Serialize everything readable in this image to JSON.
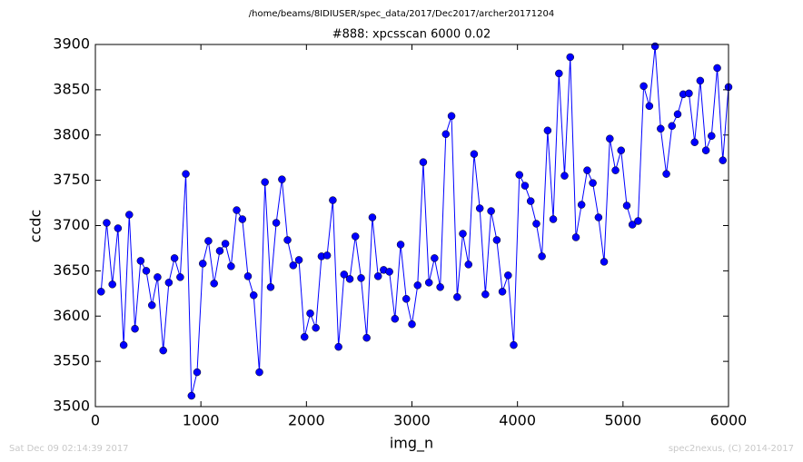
{
  "chart_data": {
    "type": "line",
    "suptitle": "/home/beams/8IDIUSER/spec_data/2017/Dec2017/archer20171204",
    "title": "#888: xpcsscan 6000 0.02",
    "x_label": "img_n",
    "y_label": "ccdc",
    "footer_left": "Sat Dec 09 02:14:39 2017",
    "footer_right": "spec2nexus, (C) 2014-2017",
    "color": "#0000ff",
    "x": [
      54,
      107,
      161,
      214,
      268,
      321,
      375,
      429,
      482,
      536,
      589,
      643,
      696,
      750,
      804,
      857,
      911,
      964,
      1018,
      1071,
      1125,
      1179,
      1232,
      1286,
      1339,
      1393,
      1446,
      1500,
      1554,
      1607,
      1661,
      1714,
      1768,
      1821,
      1875,
      1929,
      1982,
      2036,
      2089,
      2143,
      2196,
      2250,
      2304,
      2357,
      2411,
      2464,
      2518,
      2571,
      2625,
      2679,
      2732,
      2786,
      2839,
      2893,
      2946,
      3000,
      3054,
      3107,
      3161,
      3214,
      3268,
      3321,
      3375,
      3429,
      3482,
      3536,
      3589,
      3643,
      3696,
      3750,
      3804,
      3857,
      3911,
      3964,
      4018,
      4071,
      4125,
      4179,
      4232,
      4286,
      4339,
      4393,
      4446,
      4500,
      4554,
      4607,
      4661,
      4714,
      4768,
      4821,
      4875,
      4929,
      4982,
      5036,
      5089,
      5143,
      5196,
      5250,
      5304,
      5357,
      5411,
      5464,
      5518,
      5571,
      5625,
      5679,
      5732,
      5786,
      5839,
      5893,
      5946,
      6000
    ],
    "values": [
      3627,
      3703,
      3635,
      3697,
      3568,
      3712,
      3586,
      3661,
      3650,
      3612,
      3643,
      3562,
      3637,
      3664,
      3643,
      3757,
      3512,
      3538,
      3658,
      3683,
      3636,
      3672,
      3680,
      3655,
      3717,
      3707,
      3644,
      3623,
      3538,
      3748,
      3632,
      3703,
      3751,
      3684,
      3656,
      3662,
      3577,
      3603,
      3587,
      3666,
      3667,
      3728,
      3566,
      3646,
      3641,
      3688,
      3642,
      3576,
      3709,
      3644,
      3651,
      3649,
      3597,
      3679,
      3619,
      3591,
      3634,
      3770,
      3637,
      3664,
      3632,
      3801,
      3821,
      3621,
      3691,
      3657,
      3779,
      3719,
      3624,
      3716,
      3684,
      3627,
      3645,
      3568,
      3756,
      3744,
      3727,
      3702,
      3666,
      3805,
      3707,
      3868,
      3755,
      3886,
      3687,
      3723,
      3761,
      3747,
      3709,
      3660,
      3796,
      3761,
      3783,
      3722,
      3701,
      3705,
      3854,
      3832,
      3898,
      3807,
      3757,
      3810,
      3823,
      3845,
      3846,
      3792,
      3860,
      3783,
      3799,
      3874,
      3772,
      3853
    ],
    "xlim": [
      0,
      6000
    ],
    "xticks": [
      0,
      1000,
      2000,
      3000,
      4000,
      5000,
      6000
    ],
    "ylim": [
      3500,
      3900
    ],
    "yticks": [
      3500,
      3550,
      3600,
      3650,
      3700,
      3750,
      3800,
      3850,
      3900
    ],
    "grid": false
  }
}
